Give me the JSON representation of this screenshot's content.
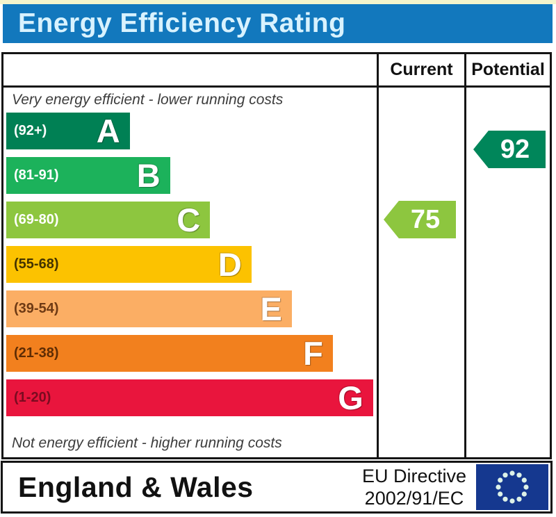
{
  "title": "Energy Efficiency Rating",
  "table": {
    "current_header": "Current",
    "potential_header": "Potential"
  },
  "chart_data": {
    "type": "bar",
    "orientation": "horizontal",
    "title": "Energy Efficiency Rating",
    "top_note": "Very energy efficient - lower running costs",
    "bottom_note": "Not energy efficient - higher running costs",
    "bands": [
      {
        "letter": "A",
        "range": "(92+)",
        "min": 92,
        "max": 100,
        "color": "#008054",
        "range_label_color": "#ffffff",
        "width_pct": 33.1
      },
      {
        "letter": "B",
        "range": "(81-91)",
        "min": 81,
        "max": 91,
        "color": "#1cb25b",
        "range_label_color": "#ffffff",
        "width_pct": 43.9
      },
      {
        "letter": "C",
        "range": "(69-80)",
        "min": 69,
        "max": 80,
        "color": "#8dc63f",
        "range_label_color": "#ffffff",
        "width_pct": 54.6
      },
      {
        "letter": "D",
        "range": "(55-68)",
        "min": 55,
        "max": 68,
        "color": "#fcc200",
        "range_label_color": "#433300",
        "width_pct": 65.7
      },
      {
        "letter": "E",
        "range": "(39-54)",
        "min": 39,
        "max": 54,
        "color": "#fbae64",
        "range_label_color": "#6e3a14",
        "width_pct": 76.5
      },
      {
        "letter": "F",
        "range": "(21-38)",
        "min": 21,
        "max": 38,
        "color": "#f2801e",
        "range_label_color": "#5e2c04",
        "width_pct": 87.5
      },
      {
        "letter": "G",
        "range": "(1-20)",
        "min": 1,
        "max": 20,
        "color": "#e9153d",
        "range_label_color": "#7a0b20",
        "width_pct": 98.3
      }
    ],
    "current": {
      "value": 75,
      "band": "C",
      "color": "#8dc63f"
    },
    "potential": {
      "value": 92,
      "band": "A",
      "color": "#00865a"
    }
  },
  "footer": {
    "region": "England & Wales",
    "directive_line1": "EU Directive",
    "directive_line2": "2002/91/EC"
  },
  "colors": {
    "title_bar_bg": "#1278bd",
    "title_text": "#d8f2fe",
    "top_strip": "#f4f4cc",
    "border": "#141414",
    "eu_flag_bg": "#15388f",
    "eu_star": "#ddf2e8"
  }
}
